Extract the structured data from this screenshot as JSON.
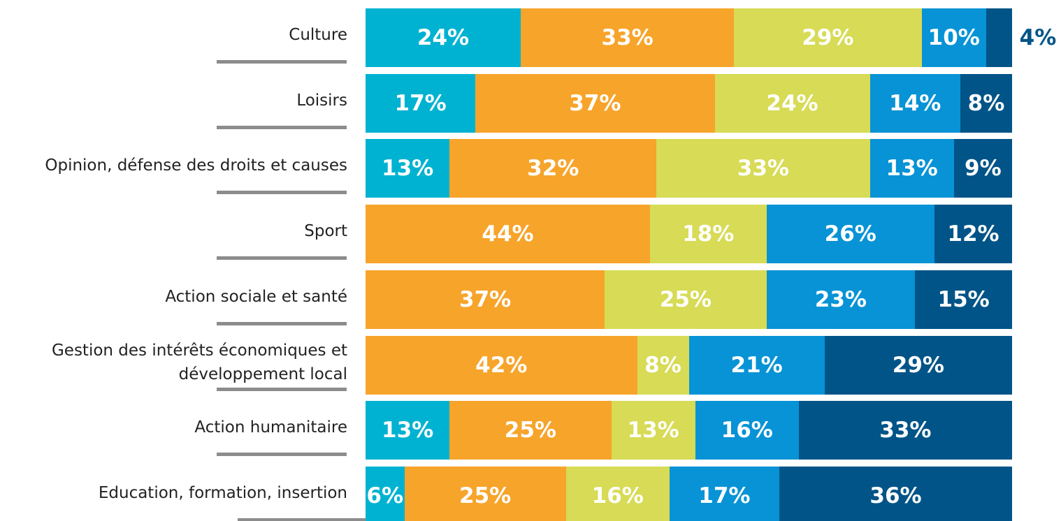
{
  "chart_data": {
    "type": "stacked-bar",
    "orientation": "horizontal",
    "categories": [
      "Culture",
      "Loisirs",
      "Opinion, défense des droits et causes",
      "Sport",
      "Action sociale et santé",
      "Gestion des intérêts économiques et développement local",
      "Action humanitaire",
      "Education, formation, insertion"
    ],
    "xlim": [
      0,
      100
    ],
    "series": [
      {
        "color": "#00b2d1",
        "values": [
          24,
          17,
          13,
          null,
          null,
          null,
          13,
          6
        ],
        "value_labels": [
          "24%",
          "17%",
          "13%",
          null,
          null,
          null,
          "13%",
          "6%"
        ]
      },
      {
        "color": "#f7a42b",
        "values": [
          33,
          37,
          32,
          44,
          37,
          42,
          25,
          25
        ],
        "value_labels": [
          "33%",
          "37%",
          "32%",
          "44%",
          "37%",
          "42%",
          "25%",
          "25%"
        ]
      },
      {
        "color": "#d7db55",
        "values": [
          29,
          24,
          33,
          18,
          25,
          8,
          13,
          16
        ],
        "value_labels": [
          "29%",
          "24%",
          "33%",
          "18%",
          "25%",
          "8%",
          "13%",
          "16%"
        ]
      },
      {
        "color": "#0793d5",
        "values": [
          10,
          14,
          13,
          26,
          23,
          21,
          16,
          17
        ],
        "value_labels": [
          "10%",
          "14%",
          "13%",
          "26%",
          "23%",
          "21%",
          "16%",
          "17%"
        ]
      },
      {
        "color": "#005487",
        "values": [
          4,
          8,
          9,
          12,
          15,
          29,
          33,
          36
        ],
        "value_labels": [
          "4%",
          "8%",
          "9%",
          "12%",
          "15%",
          "29%",
          "33%",
          "36%"
        ]
      }
    ]
  }
}
